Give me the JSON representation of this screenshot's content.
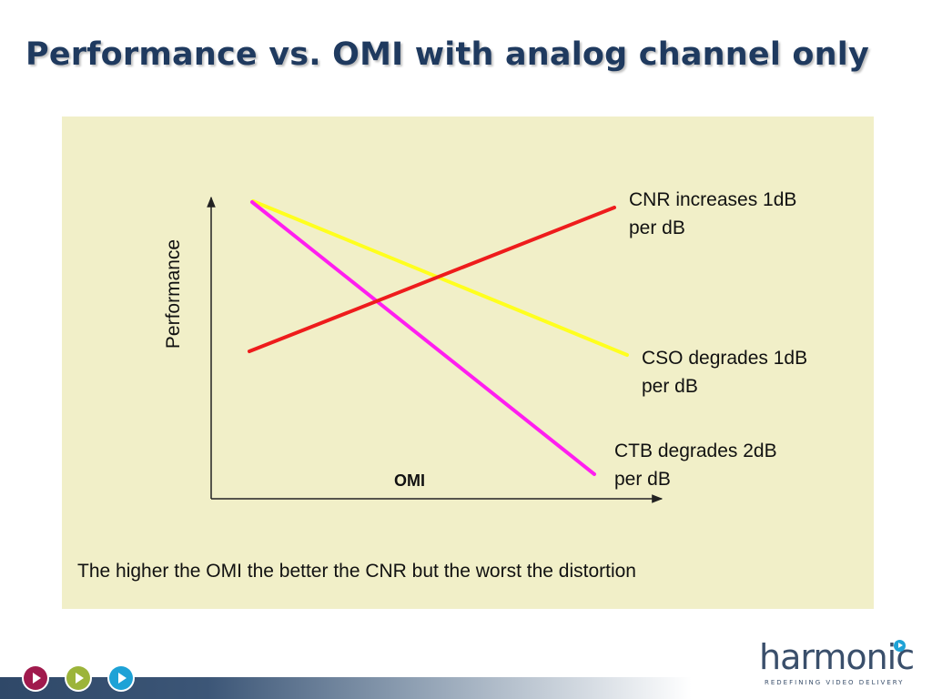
{
  "title": "Performance vs. OMI with analog channel only",
  "diagram": {
    "y_axis_label": "Performance",
    "x_axis_label": "OMI",
    "colors": {
      "cnr": "#ee1c1c",
      "cso": "#ffff1e",
      "ctb": "#ff1ef0",
      "panel": "#f1efc8",
      "title": "#1f3a5f"
    },
    "annotations": {
      "cnr": {
        "line1": "CNR increases 1dB",
        "line2": "per dB"
      },
      "cso": {
        "line1": "CSO degrades 1dB",
        "line2": "per dB"
      },
      "ctb": {
        "line1": "CTB degrades 2dB",
        "line2": "per dB"
      }
    },
    "caption": "The higher the OMI the better the CNR but the worst the distortion"
  },
  "footer": {
    "nav_buttons": [
      {
        "icon": "play-icon",
        "color": "#a01a4d"
      },
      {
        "icon": "play-icon",
        "color": "#9cb43a"
      },
      {
        "icon": "play-icon",
        "color": "#1ea2d6"
      }
    ],
    "logo": {
      "wordmark": "harmonic",
      "tagline": "REDEFINING VIDEO DELIVERY"
    }
  }
}
